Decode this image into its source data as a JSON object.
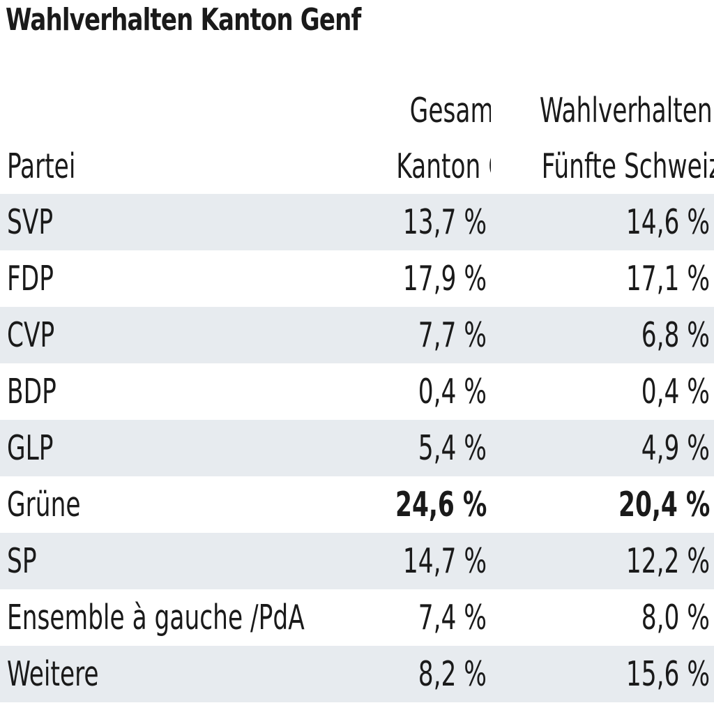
{
  "title": "Wahlverhalten Kanton Genf",
  "chart_data": {
    "type": "table",
    "columns": [
      [
        "",
        "Partei"
      ],
      [
        "Gesamtergebnis",
        "Kanton Genf"
      ],
      [
        "Wahlverhalten",
        "Fünfte Schweiz"
      ]
    ],
    "rows": [
      {
        "party": "SVP",
        "genf": "13,7 %",
        "fuenfte": "14,6 %",
        "bold": false
      },
      {
        "party": "FDP",
        "genf": "17,9 %",
        "fuenfte": "17,1 %",
        "bold": false
      },
      {
        "party": "CVP",
        "genf": "7,7 %",
        "fuenfte": "6,8 %",
        "bold": false
      },
      {
        "party": "BDP",
        "genf": "0,4 %",
        "fuenfte": "0,4 %",
        "bold": false
      },
      {
        "party": "GLP",
        "genf": "5,4 %",
        "fuenfte": "4,9 %",
        "bold": false
      },
      {
        "party": "Grüne",
        "genf": "24,6 %",
        "fuenfte": "20,4 %",
        "bold": true
      },
      {
        "party": "SP",
        "genf": "14,7 %",
        "fuenfte": "12,2 %",
        "bold": false
      },
      {
        "party": "Ensemble à gauche /PdA",
        "genf": "7,4 %",
        "fuenfte": "8,0 %",
        "bold": false
      },
      {
        "party": "Weitere",
        "genf": "8,2 %",
        "fuenfte": "15,6 %",
        "bold": false
      }
    ]
  },
  "colors": {
    "row_shade": "#e7ebef",
    "text": "#1a1a1a"
  }
}
